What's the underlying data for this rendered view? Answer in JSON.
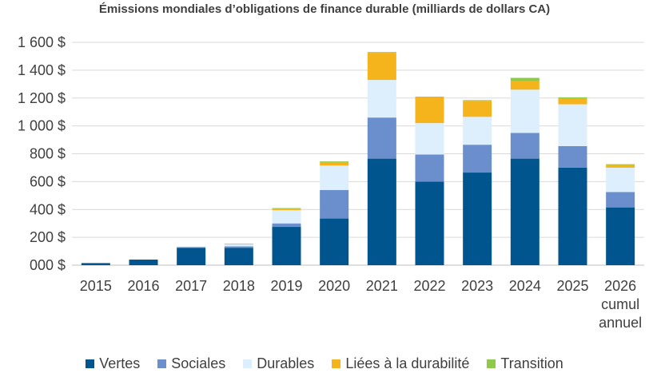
{
  "chart_data": {
    "type": "bar",
    "stacked": true,
    "title": "Émissions mondiales d’obligations de finance durable (milliards de dollars CA)",
    "xlabel": "",
    "ylabel": "",
    "ylim": [
      0,
      1600
    ],
    "y_ticks": [
      "000 $",
      "200 $",
      "400 $",
      "600 $",
      "800 $",
      "1 000 $",
      "1 200 $",
      "1 400 $",
      "1 600 $"
    ],
    "categories": [
      [
        "2015"
      ],
      [
        "2016"
      ],
      [
        "2017"
      ],
      [
        "2018"
      ],
      [
        "2019"
      ],
      [
        "2020"
      ],
      [
        "2021"
      ],
      [
        "2022"
      ],
      [
        "2023"
      ],
      [
        "2024"
      ],
      [
        "2025"
      ],
      [
        "2026",
        "cumul",
        "annuel"
      ]
    ],
    "grid": true,
    "legend_position": "bottom",
    "series": [
      {
        "name": "Vertes",
        "color": "#00558f",
        "values": [
          15,
          40,
          125,
          125,
          275,
          335,
          765,
          600,
          665,
          765,
          700,
          415
        ]
      },
      {
        "name": "Sociales",
        "color": "#6b8fcc",
        "values": [
          0,
          0,
          5,
          10,
          25,
          205,
          295,
          195,
          200,
          185,
          155,
          110
        ]
      },
      {
        "name": "Durables",
        "color": "#ddeffc",
        "values": [
          0,
          0,
          5,
          15,
          95,
          175,
          270,
          225,
          200,
          310,
          300,
          175
        ]
      },
      {
        "name": "Liées à la durabilité",
        "color": "#f6b41c",
        "values": [
          0,
          0,
          0,
          5,
          10,
          25,
          195,
          185,
          115,
          60,
          40,
          20
        ]
      },
      {
        "name": "Transition",
        "color": "#8fc94a",
        "values": [
          0,
          0,
          0,
          0,
          5,
          5,
          5,
          5,
          5,
          25,
          10,
          5
        ]
      }
    ]
  }
}
